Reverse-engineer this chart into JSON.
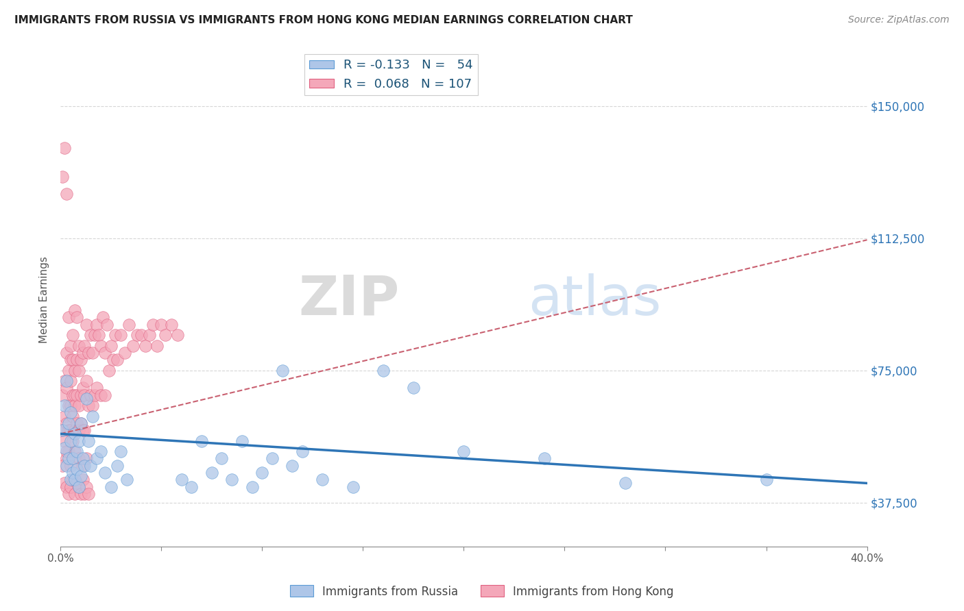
{
  "title": "IMMIGRANTS FROM RUSSIA VS IMMIGRANTS FROM HONG KONG MEDIAN EARNINGS CORRELATION CHART",
  "source": "Source: ZipAtlas.com",
  "ylabel": "Median Earnings",
  "xlim": [
    0.0,
    0.4
  ],
  "ylim": [
    25000,
    165000
  ],
  "yticks": [
    37500,
    75000,
    112500,
    150000
  ],
  "ytick_labels": [
    "$37,500",
    "$75,000",
    "$112,500",
    "$150,000"
  ],
  "xticks": [
    0.0,
    0.05,
    0.1,
    0.15,
    0.2,
    0.25,
    0.3,
    0.35,
    0.4
  ],
  "xtick_labels": [
    "0.0%",
    "",
    "",
    "",
    "",
    "",
    "",
    "",
    "40.0%"
  ],
  "russia_color": "#aec6e8",
  "russia_edge": "#5b9bd5",
  "hk_color": "#f4a7b9",
  "hk_edge": "#e06080",
  "russia_R": -0.133,
  "russia_N": 54,
  "hk_R": 0.068,
  "hk_N": 107,
  "russia_line_color": "#2e75b6",
  "hk_line_color": "#c96070",
  "watermark": "ZIPatlas",
  "legend_label_russia": "Immigrants from Russia",
  "legend_label_hk": "Immigrants from Hong Kong",
  "russia_x": [
    0.001,
    0.002,
    0.002,
    0.003,
    0.003,
    0.004,
    0.004,
    0.005,
    0.005,
    0.005,
    0.006,
    0.006,
    0.007,
    0.007,
    0.008,
    0.008,
    0.009,
    0.009,
    0.01,
    0.01,
    0.011,
    0.012,
    0.013,
    0.014,
    0.015,
    0.016,
    0.018,
    0.02,
    0.022,
    0.025,
    0.028,
    0.03,
    0.033,
    0.06,
    0.065,
    0.07,
    0.075,
    0.08,
    0.085,
    0.09,
    0.095,
    0.1,
    0.105,
    0.11,
    0.115,
    0.12,
    0.13,
    0.145,
    0.16,
    0.175,
    0.2,
    0.24,
    0.28,
    0.35
  ],
  "russia_y": [
    58000,
    53000,
    65000,
    72000,
    48000,
    60000,
    50000,
    55000,
    44000,
    63000,
    50000,
    46000,
    57000,
    44000,
    52000,
    47000,
    55000,
    42000,
    60000,
    45000,
    50000,
    48000,
    67000,
    55000,
    48000,
    62000,
    50000,
    52000,
    46000,
    42000,
    48000,
    52000,
    44000,
    44000,
    42000,
    55000,
    46000,
    50000,
    44000,
    55000,
    42000,
    46000,
    50000,
    75000,
    48000,
    52000,
    44000,
    42000,
    75000,
    70000,
    52000,
    50000,
    43000,
    44000
  ],
  "hk_x": [
    0.001,
    0.001,
    0.001,
    0.002,
    0.002,
    0.002,
    0.002,
    0.003,
    0.003,
    0.003,
    0.003,
    0.003,
    0.004,
    0.004,
    0.004,
    0.004,
    0.004,
    0.005,
    0.005,
    0.005,
    0.005,
    0.005,
    0.006,
    0.006,
    0.006,
    0.006,
    0.006,
    0.007,
    0.007,
    0.007,
    0.007,
    0.007,
    0.008,
    0.008,
    0.008,
    0.008,
    0.009,
    0.009,
    0.009,
    0.009,
    0.01,
    0.01,
    0.01,
    0.011,
    0.011,
    0.011,
    0.012,
    0.012,
    0.012,
    0.013,
    0.013,
    0.014,
    0.014,
    0.015,
    0.015,
    0.016,
    0.016,
    0.017,
    0.017,
    0.018,
    0.018,
    0.019,
    0.02,
    0.02,
    0.021,
    0.022,
    0.022,
    0.023,
    0.024,
    0.025,
    0.026,
    0.027,
    0.028,
    0.03,
    0.032,
    0.034,
    0.036,
    0.038,
    0.04,
    0.042,
    0.044,
    0.046,
    0.048,
    0.05,
    0.052,
    0.055,
    0.058,
    0.001,
    0.002,
    0.003,
    0.004,
    0.005,
    0.006,
    0.007,
    0.008,
    0.009,
    0.01,
    0.011,
    0.012,
    0.013,
    0.014,
    0.003,
    0.005,
    0.007,
    0.009,
    0.011,
    0.013
  ],
  "hk_y": [
    68000,
    58000,
    130000,
    62000,
    72000,
    55000,
    138000,
    70000,
    60000,
    80000,
    50000,
    125000,
    65000,
    58000,
    75000,
    52000,
    90000,
    72000,
    65000,
    82000,
    58000,
    78000,
    68000,
    62000,
    78000,
    55000,
    85000,
    75000,
    68000,
    65000,
    92000,
    58000,
    78000,
    68000,
    60000,
    90000,
    75000,
    65000,
    82000,
    58000,
    78000,
    68000,
    60000,
    80000,
    70000,
    58000,
    82000,
    68000,
    58000,
    88000,
    72000,
    80000,
    65000,
    85000,
    68000,
    80000,
    65000,
    85000,
    68000,
    88000,
    70000,
    85000,
    82000,
    68000,
    90000,
    80000,
    68000,
    88000,
    75000,
    82000,
    78000,
    85000,
    78000,
    85000,
    80000,
    88000,
    82000,
    85000,
    85000,
    82000,
    85000,
    88000,
    82000,
    88000,
    85000,
    88000,
    85000,
    48000,
    43000,
    42000,
    40000,
    42000,
    44000,
    40000,
    43000,
    42000,
    40000,
    44000,
    40000,
    42000,
    40000,
    52000,
    48000,
    52000,
    50000,
    48000,
    50000
  ]
}
